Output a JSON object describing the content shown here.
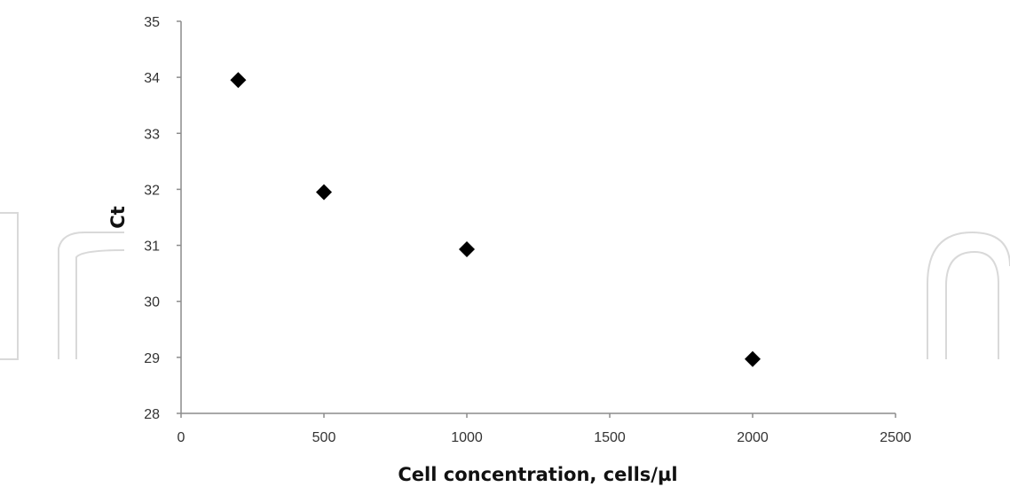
{
  "chart_data": {
    "type": "scatter",
    "title": "",
    "xlabel": "Cell concentration, cells/µl",
    "ylabel": "Ct",
    "xlim": [
      0,
      2500
    ],
    "ylim": [
      28,
      35
    ],
    "x_ticks": [
      "0",
      "500",
      "1000",
      "1500",
      "2000",
      "2500"
    ],
    "y_ticks": [
      "28",
      "29",
      "30",
      "31",
      "32",
      "33",
      "34",
      "35"
    ],
    "grid": false,
    "legend": "none",
    "marker": "diamond",
    "marker_color": "#000000",
    "series": [
      {
        "x": [
          200,
          500,
          1000,
          2000
        ],
        "y": [
          33.95,
          31.95,
          30.93,
          28.97
        ]
      }
    ]
  }
}
